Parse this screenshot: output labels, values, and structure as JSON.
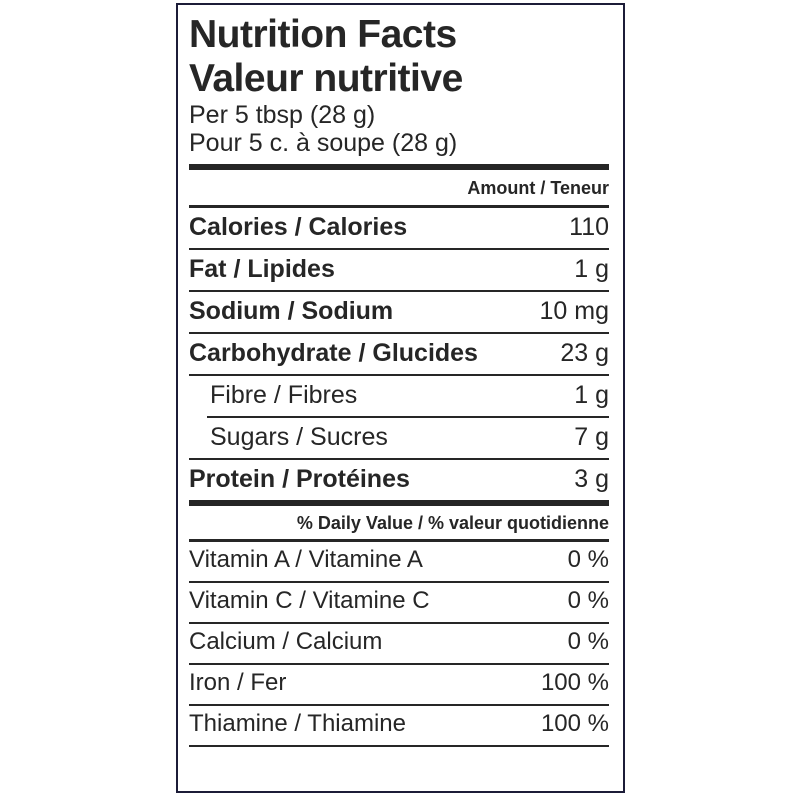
{
  "label": {
    "title_en": "Nutrition Facts",
    "title_fr": "Valeur nutritive",
    "serving_en": "Per 5 tbsp (28 g)",
    "serving_fr": "Pour 5 c. à soupe (28 g)",
    "amount_header": "Amount / Teneur",
    "daily_value_header": "% Daily Value / % valeur quotidienne",
    "nutrients": [
      {
        "name": "Calories / Calories",
        "value": "110"
      },
      {
        "name": "Fat / Lipides",
        "value": "1 g"
      },
      {
        "name": "Sodium / Sodium",
        "value": "10 mg"
      },
      {
        "name": "Carbohydrate / Glucides",
        "value": "23 g"
      },
      {
        "name": "Fibre / Fibres",
        "value": "1 g"
      },
      {
        "name": "Sugars / Sucres",
        "value": "7 g"
      },
      {
        "name": "Protein / Protéines",
        "value": "3 g"
      }
    ],
    "daily_values": [
      {
        "name": "Vitamin A / Vitamine A",
        "value": "0 %"
      },
      {
        "name": "Vitamin C / Vitamine C",
        "value": "0 %"
      },
      {
        "name": "Calcium / Calcium",
        "value": "0 %"
      },
      {
        "name": "Iron / Fer",
        "value": "100 %"
      },
      {
        "name": "Thiamine / Thiamine",
        "value": "100 %"
      }
    ],
    "colors": {
      "border": "#1c1c38",
      "text": "#262626",
      "background": "#ffffff"
    }
  }
}
